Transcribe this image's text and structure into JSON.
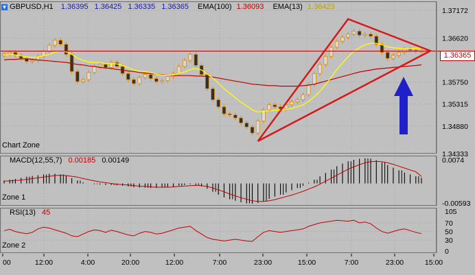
{
  "header": {
    "symbol": "GBPUSD,H1",
    "ohlc": [
      "1.36395",
      "1.36425",
      "1.36335",
      "1.36365"
    ],
    "ema100_label": "EMA(100)",
    "ema100_value": "1.36093",
    "ema13_label": "EMA(13)",
    "ema13_value": "1.36423"
  },
  "colors": {
    "background": "#c0c0c0",
    "grid": "#a8a8a8",
    "candle_bull": "#d9d9d9",
    "candle_bear": "#303030",
    "ema13": "#ffff00",
    "ema100": "#c00000",
    "triangle": "#d81818",
    "arrow": "#2020c8",
    "price_box": "#c00000"
  },
  "zones": {
    "chart": "Chart Zone",
    "macd": "Zone 1",
    "rsi": "Zone 2"
  },
  "macd": {
    "label": "MACD(12,55,7)",
    "signal_value": "0.00185",
    "macd_value": "0.00149"
  },
  "rsi": {
    "label": "RSI(13)",
    "value": "45"
  },
  "current_price_label": "1.36365",
  "annotation_icons": [
    "triangle-pattern",
    "up-arrow-icon"
  ],
  "chart_data": [
    {
      "type": "candlestick",
      "title": "GBPUSD,H1",
      "ylim": [
        1.34333,
        1.3735
      ],
      "y_ticks": [
        "1.37172",
        "1.36620",
        "1.36365",
        "1.35750",
        "1.35315",
        "1.34880",
        "1.34333"
      ],
      "x_ticks": [
        "00",
        "12:00",
        "4:00",
        "20:00",
        "12:00",
        "7:00",
        "23:00",
        "15:00",
        "7:00",
        "23:00",
        "15:00"
      ],
      "close_series": [
        1.3631,
        1.3634,
        1.3628,
        1.3622,
        1.3616,
        1.3618,
        1.3626,
        1.3636,
        1.3648,
        1.3658,
        1.365,
        1.363,
        1.3596,
        1.3576,
        1.358,
        1.3594,
        1.3606,
        1.361,
        1.3604,
        1.3614,
        1.3606,
        1.3592,
        1.358,
        1.3572,
        1.3584,
        1.359,
        1.3582,
        1.3576,
        1.3578,
        1.3586,
        1.3592,
        1.3606,
        1.3618,
        1.363,
        1.3608,
        1.359,
        1.3562,
        1.354,
        1.3526,
        1.3512,
        1.351,
        1.3504,
        1.3494,
        1.3486,
        1.3474,
        1.3498,
        1.352,
        1.353,
        1.3526,
        1.3522,
        1.353,
        1.3536,
        1.354,
        1.355,
        1.357,
        1.3592,
        1.361,
        1.3626,
        1.3644,
        1.3656,
        1.3664,
        1.367,
        1.3676,
        1.3668,
        1.367,
        1.3666,
        1.365,
        1.3634,
        1.3622,
        1.3628,
        1.3634,
        1.364,
        1.3638,
        1.3636,
        1.36365
      ],
      "ema13_series": [
        1.3628,
        1.363,
        1.3629,
        1.3627,
        1.3625,
        1.3624,
        1.3625,
        1.3627,
        1.363,
        1.3634,
        1.3636,
        1.3635,
        1.363,
        1.3623,
        1.3618,
        1.3615,
        1.3614,
        1.3614,
        1.3612,
        1.3612,
        1.3611,
        1.3608,
        1.3604,
        1.3599,
        1.3597,
        1.3596,
        1.3594,
        1.3591,
        1.3589,
        1.3589,
        1.3589,
        1.3592,
        1.3595,
        1.36,
        1.3602,
        1.3599,
        1.3591,
        1.3583,
        1.3573,
        1.3562,
        1.3553,
        1.3544,
        1.3535,
        1.3528,
        1.352,
        1.3516,
        1.3517,
        1.3518,
        1.3519,
        1.352,
        1.3521,
        1.3523,
        1.3526,
        1.353,
        1.3537,
        1.3546,
        1.3557,
        1.357,
        1.3585,
        1.36,
        1.3613,
        1.3625,
        1.3636,
        1.3643,
        1.3649,
        1.3652,
        1.3652,
        1.3649,
        1.3645,
        1.3643,
        1.3642,
        1.3641,
        1.3641,
        1.3642,
        1.36423
      ],
      "ema100_series": [
        1.3619,
        1.362,
        1.362,
        1.3621,
        1.3621,
        1.362,
        1.3619,
        1.3618,
        1.3617,
        1.3616,
        1.3615,
        1.3614,
        1.3612,
        1.361,
        1.3609,
        1.3607,
        1.3606,
        1.3604,
        1.3603,
        1.3602,
        1.36,
        1.3599,
        1.3597,
        1.3596,
        1.3594,
        1.3593,
        1.3592,
        1.3591,
        1.359,
        1.3589,
        1.3588,
        1.3588,
        1.3588,
        1.3588,
        1.3587,
        1.3587,
        1.3586,
        1.3585,
        1.3583,
        1.3581,
        1.3579,
        1.3577,
        1.3575,
        1.3573,
        1.3571,
        1.357,
        1.3569,
        1.3568,
        1.3568,
        1.3567,
        1.3567,
        1.3567,
        1.3567,
        1.3568,
        1.3569,
        1.3571,
        1.3574,
        1.3577,
        1.358,
        1.3583,
        1.3586,
        1.3589,
        1.3592,
        1.3595,
        1.3597,
        1.3599,
        1.3601,
        1.3602,
        1.3603,
        1.3604,
        1.3605,
        1.3606,
        1.3607,
        1.3608,
        1.36093
      ]
    },
    {
      "type": "bar",
      "title": "MACD(12,55,7)",
      "ylim": [
        -0.00593,
        0.0074
      ],
      "y_ticks": [
        "0.0074",
        "-0.00593"
      ],
      "values": [
        0.0008,
        0.001,
        0.0012,
        0.0015,
        0.0018,
        0.002,
        0.0022,
        0.0024,
        0.0026,
        0.0026,
        0.0024,
        0.002,
        0.0014,
        0.0008,
        0.0003,
        0.0,
        -0.0002,
        -0.0003,
        -0.0004,
        -0.0004,
        -0.0005,
        -0.0006,
        -0.0008,
        -0.001,
        -0.0011,
        -0.0011,
        -0.0012,
        -0.0012,
        -0.0011,
        -0.001,
        -0.0008,
        -0.0006,
        -0.0004,
        -0.0002,
        -0.0004,
        -0.0008,
        -0.0014,
        -0.0022,
        -0.003,
        -0.0037,
        -0.0042,
        -0.0046,
        -0.005,
        -0.0053,
        -0.0054,
        -0.0052,
        -0.0047,
        -0.0041,
        -0.0035,
        -0.003,
        -0.0024,
        -0.0018,
        -0.0012,
        -0.0006,
        0.0002,
        0.001,
        0.0019,
        0.0028,
        0.0037,
        0.0046,
        0.0053,
        0.0059,
        0.0063,
        0.0066,
        0.0067,
        0.0066,
        0.0062,
        0.0056,
        0.0049,
        0.0042,
        0.0035,
        0.0029,
        0.0024,
        0.0019,
        0.00149
      ],
      "signal": [
        0.0006,
        0.0007,
        0.0008,
        0.0009,
        0.0011,
        0.0013,
        0.0015,
        0.0017,
        0.0019,
        0.0021,
        0.0022,
        0.0021,
        0.0019,
        0.0017,
        0.0013,
        0.001,
        0.0007,
        0.0004,
        0.0002,
        0.0,
        -0.0002,
        -0.0003,
        -0.0004,
        -0.0006,
        -0.0007,
        -0.0008,
        -0.0009,
        -0.001,
        -0.001,
        -0.001,
        -0.0009,
        -0.0008,
        -0.0007,
        -0.0006,
        -0.0005,
        -0.0006,
        -0.0008,
        -0.0012,
        -0.0017,
        -0.0022,
        -0.0028,
        -0.0033,
        -0.0038,
        -0.0042,
        -0.0046,
        -0.0048,
        -0.0048,
        -0.0046,
        -0.0043,
        -0.0039,
        -0.0035,
        -0.0031,
        -0.0026,
        -0.0021,
        -0.0015,
        -0.0009,
        -0.0002,
        0.0006,
        0.0014,
        0.0022,
        0.003,
        0.0038,
        0.0044,
        0.005,
        0.0055,
        0.0058,
        0.0059,
        0.0058,
        0.0055,
        0.0051,
        0.0046,
        0.0041,
        0.0036,
        0.0031,
        0.00185
      ]
    },
    {
      "type": "line",
      "title": "RSI(13)",
      "ylim": [
        0,
        105
      ],
      "y_ticks": [
        "105",
        "70",
        "50",
        "30",
        "0"
      ],
      "values": [
        52,
        55,
        50,
        47,
        45,
        48,
        56,
        60,
        58,
        54,
        50,
        46,
        40,
        38,
        44,
        50,
        54,
        52,
        48,
        53,
        50,
        46,
        42,
        40,
        46,
        50,
        48,
        44,
        46,
        50,
        54,
        58,
        60,
        62,
        52,
        44,
        36,
        32,
        30,
        28,
        30,
        32,
        30,
        28,
        27,
        38,
        48,
        52,
        50,
        48,
        50,
        52,
        54,
        56,
        62,
        66,
        70,
        72,
        74,
        76,
        75,
        74,
        76,
        70,
        72,
        68,
        58,
        50,
        46,
        50,
        54,
        56,
        52,
        48,
        45
      ]
    }
  ]
}
